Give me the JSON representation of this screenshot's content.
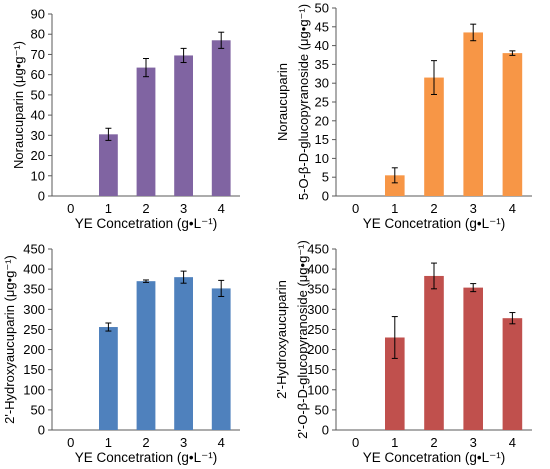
{
  "chart_data": [
    {
      "type": "bar",
      "categories": [
        "0",
        "1",
        "2",
        "3",
        "4"
      ],
      "values": [
        0,
        30.5,
        63.5,
        69.5,
        77
      ],
      "errors": [
        0,
        3,
        4.5,
        3.5,
        4
      ],
      "color": "#8064a2",
      "xlabel": "YE Concetration (g•L⁻¹)",
      "ylabel": [
        "Noraucuparin (μg•g⁻¹)"
      ],
      "ylim": [
        0,
        90
      ],
      "yticks": [
        0,
        10,
        20,
        30,
        40,
        50,
        60,
        70,
        80,
        90
      ]
    },
    {
      "type": "bar",
      "categories": [
        "0",
        "1",
        "2",
        "3",
        "4"
      ],
      "values": [
        0,
        5.5,
        31.5,
        43.5,
        38
      ],
      "errors": [
        0,
        2,
        4.5,
        2.2,
        0.6
      ],
      "color": "#f79646",
      "xlabel": "YE Concetration (g•L⁻¹)",
      "ylabel": [
        "Noraucuparin",
        "5-O-β-D-glucopyranoside (μg•g⁻¹)"
      ],
      "ylim": [
        0,
        50
      ],
      "yticks": [
        0,
        5,
        10,
        15,
        20,
        25,
        30,
        35,
        40,
        45,
        50
      ]
    },
    {
      "type": "bar",
      "categories": [
        "0",
        "1",
        "2",
        "3",
        "4"
      ],
      "values": [
        0,
        256,
        370,
        380,
        352
      ],
      "errors": [
        0,
        10,
        3,
        15,
        20
      ],
      "color": "#4f81bd",
      "xlabel": "YE Concetration (g•L⁻¹)",
      "ylabel": [
        "2'-Hydroxyaucuparin (μg•g⁻¹)"
      ],
      "ylim": [
        0,
        450
      ],
      "yticks": [
        0,
        50,
        100,
        150,
        200,
        250,
        300,
        350,
        400,
        450
      ]
    },
    {
      "type": "bar",
      "categories": [
        "0",
        "1",
        "2",
        "3",
        "4"
      ],
      "values": [
        0,
        230,
        383,
        354,
        278
      ],
      "errors": [
        0,
        52,
        32,
        10,
        14
      ],
      "color": "#c0504d",
      "xlabel": "YE Concetration (g•L⁻¹)",
      "ylabel": [
        "2'-Hydroxyaucuparin",
        "2'-O-β-D-glucopyranoside (μg•g⁻¹)"
      ],
      "ylim": [
        0,
        450
      ],
      "yticks": [
        0,
        50,
        100,
        150,
        200,
        250,
        300,
        350,
        400,
        450
      ]
    }
  ]
}
